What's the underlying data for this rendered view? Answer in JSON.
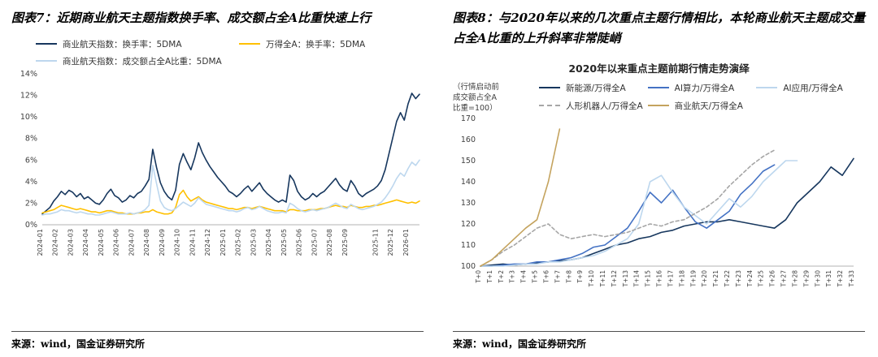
{
  "left": {
    "heading": "图表7：近期商业航天主题指数换手率、成交额占全A比重快速上行",
    "source": "来源：wind，国金证券研究所"
  },
  "right": {
    "heading": "图表8：与2020年以来的几次重点主题行情相比，本轮商业航天主题成交量占全A比重的上升斜率非常陡峭",
    "note": "（行情启动前\n成交额占全A\n比重=100）",
    "source": "来源：wind，国金证券研究所"
  },
  "colors": {
    "navy": "#17375E",
    "gold_yellow": "#FFC000",
    "light_blue": "#BDD7EE",
    "medium_blue": "#4472C4",
    "gray": "#A6A6A6",
    "tan": "#C4A35E"
  },
  "chart_data": [
    {
      "id": "fig7",
      "type": "line",
      "title": "",
      "ylim": [
        0,
        14
      ],
      "yticks": [
        {
          "v": 0,
          "label": "0%"
        },
        {
          "v": 2,
          "label": "2%"
        },
        {
          "v": 4,
          "label": "4%"
        },
        {
          "v": 6,
          "label": "6%"
        },
        {
          "v": 8,
          "label": "8%"
        },
        {
          "v": 10,
          "label": "10%"
        },
        {
          "v": 12,
          "label": "12%"
        },
        {
          "v": 14,
          "label": "14%"
        }
      ],
      "x_labels": [
        "2024-01",
        "2024-02",
        "2024-03",
        "2024-04",
        "2024-05",
        "2024-06",
        "2024-07",
        "2024-08",
        "2024-09",
        "2024-10",
        "2024-11",
        "2024-12",
        "2025-01",
        "2025-02",
        "2025-03",
        "2025-04",
        "2025-05",
        "2025-06",
        "2025-07",
        "2025-08",
        "2025-09",
        "2025-11",
        "2025-12",
        "2026-01"
      ],
      "x_label_point": [
        0,
        4,
        8,
        12,
        16,
        20,
        24,
        28,
        32,
        36,
        40,
        44,
        48,
        52,
        56,
        60,
        64,
        68,
        72,
        76,
        80,
        88,
        92,
        96
      ],
      "grid": false,
      "legend_position": "top",
      "series": [
        {
          "name": "商业航天指数：换手率：5DMA",
          "color": "#17375E",
          "dash": false,
          "values": [
            1.0,
            1.3,
            1.6,
            2.2,
            2.6,
            3.1,
            2.8,
            3.2,
            3.0,
            2.6,
            2.9,
            2.4,
            2.6,
            2.3,
            2.0,
            1.9,
            2.3,
            2.9,
            3.3,
            2.7,
            2.5,
            2.1,
            2.3,
            2.7,
            2.5,
            2.9,
            3.1,
            3.6,
            4.2,
            7.0,
            5.3,
            3.9,
            3.1,
            2.6,
            2.3,
            3.2,
            5.6,
            6.6,
            5.8,
            5.1,
            6.2,
            7.6,
            6.7,
            6.0,
            5.4,
            4.9,
            4.4,
            4.0,
            3.6,
            3.1,
            2.9,
            2.6,
            2.9,
            3.3,
            3.6,
            3.1,
            3.5,
            3.9,
            3.3,
            2.9,
            2.6,
            2.3,
            2.1,
            2.3,
            2.1,
            4.6,
            4.1,
            3.1,
            2.6,
            2.3,
            2.5,
            2.9,
            2.6,
            2.9,
            3.1,
            3.5,
            3.9,
            4.3,
            3.7,
            3.3,
            3.1,
            4.1,
            3.6,
            2.9,
            2.6,
            2.9,
            3.1,
            3.3,
            3.6,
            4.1,
            5.1,
            6.6,
            8.1,
            9.6,
            10.4,
            9.7,
            11.2,
            12.2,
            11.7,
            12.1
          ]
        },
        {
          "name": "万得全A：换手率：5DMA",
          "color": "#FFC000",
          "dash": false,
          "values": [
            1.1,
            1.2,
            1.3,
            1.4,
            1.6,
            1.8,
            1.7,
            1.6,
            1.5,
            1.4,
            1.5,
            1.4,
            1.3,
            1.2,
            1.2,
            1.1,
            1.2,
            1.3,
            1.3,
            1.2,
            1.1,
            1.1,
            1.0,
            1.0,
            1.0,
            1.1,
            1.1,
            1.2,
            1.2,
            1.4,
            1.2,
            1.1,
            1.0,
            1.0,
            1.1,
            1.6,
            2.8,
            3.2,
            2.6,
            2.2,
            2.4,
            2.6,
            2.3,
            2.1,
            2.0,
            1.9,
            1.8,
            1.7,
            1.6,
            1.5,
            1.5,
            1.4,
            1.5,
            1.6,
            1.6,
            1.5,
            1.6,
            1.7,
            1.6,
            1.5,
            1.4,
            1.3,
            1.3,
            1.3,
            1.2,
            1.4,
            1.4,
            1.3,
            1.3,
            1.3,
            1.4,
            1.4,
            1.4,
            1.5,
            1.5,
            1.6,
            1.7,
            1.8,
            1.7,
            1.7,
            1.6,
            1.8,
            1.7,
            1.6,
            1.6,
            1.7,
            1.7,
            1.8,
            1.8,
            1.9,
            2.0,
            2.1,
            2.2,
            2.3,
            2.2,
            2.1,
            2.0,
            2.1,
            2.0,
            2.2
          ]
        },
        {
          "name": "商业航天指数：成交额占全A比重：5DMA",
          "color": "#BDD7EE",
          "dash": false,
          "values": [
            0.9,
            1.0,
            1.0,
            1.1,
            1.2,
            1.4,
            1.3,
            1.3,
            1.2,
            1.1,
            1.2,
            1.1,
            1.0,
            1.0,
            0.9,
            0.9,
            1.0,
            1.1,
            1.2,
            1.1,
            1.0,
            1.0,
            1.0,
            1.1,
            1.0,
            1.1,
            1.2,
            1.4,
            1.8,
            5.5,
            3.8,
            2.2,
            1.6,
            1.4,
            1.3,
            1.5,
            1.8,
            2.1,
            1.9,
            1.7,
            2.0,
            2.5,
            2.2,
            1.9,
            1.8,
            1.7,
            1.6,
            1.5,
            1.4,
            1.3,
            1.3,
            1.2,
            1.3,
            1.5,
            1.6,
            1.4,
            1.5,
            1.7,
            1.5,
            1.3,
            1.2,
            1.1,
            1.1,
            1.2,
            1.1,
            2.0,
            1.8,
            1.5,
            1.3,
            1.2,
            1.3,
            1.4,
            1.3,
            1.4,
            1.5,
            1.6,
            1.8,
            2.0,
            1.8,
            1.6,
            1.5,
            1.9,
            1.7,
            1.5,
            1.4,
            1.5,
            1.6,
            1.7,
            1.9,
            2.1,
            2.5,
            3.0,
            3.6,
            4.3,
            4.8,
            4.5,
            5.2,
            5.8,
            5.5,
            6.0
          ]
        }
      ]
    },
    {
      "id": "fig8",
      "type": "line",
      "title": "2020年以来重点主题前期行情走势演绎",
      "ylim": [
        100,
        170
      ],
      "yticks": [
        {
          "v": 100,
          "label": "100"
        },
        {
          "v": 110,
          "label": "110"
        },
        {
          "v": 120,
          "label": "120"
        },
        {
          "v": 130,
          "label": "130"
        },
        {
          "v": 140,
          "label": "140"
        },
        {
          "v": 150,
          "label": "150"
        },
        {
          "v": 160,
          "label": "160"
        },
        {
          "v": 170,
          "label": "170"
        }
      ],
      "x_labels": [
        "T+0",
        "T+1",
        "T+2",
        "T+3",
        "T+4",
        "T+5",
        "T+6",
        "T+7",
        "T+8",
        "T+9",
        "T+10",
        "T+11",
        "T+12",
        "T+13",
        "T+14",
        "T+15",
        "T+16",
        "T+17",
        "T+18",
        "T+19",
        "T+20",
        "T+21",
        "T+22",
        "T+23",
        "T+24",
        "T+25",
        "T+26",
        "T+27",
        "T+28",
        "T+29",
        "T+30",
        "T+31",
        "T+32",
        "T+33"
      ],
      "grid": false,
      "legend_position": "top",
      "series": [
        {
          "name": "新能源/万得全A",
          "color": "#17375E",
          "dash": false,
          "values": [
            100,
            100.5,
            101,
            100.5,
            101,
            101.5,
            102,
            102.5,
            103,
            104,
            106,
            108,
            110,
            111,
            113,
            114,
            116,
            117,
            119,
            120,
            121,
            121,
            122,
            121,
            120,
            119,
            118,
            122,
            130,
            135,
            140,
            147,
            143,
            151
          ]
        },
        {
          "name": "AI算力/万得全A",
          "color": "#4472C4",
          "dash": false,
          "values": [
            100,
            100,
            100.5,
            101,
            101,
            102,
            102,
            103,
            104,
            106,
            109,
            110,
            114,
            118,
            126,
            135,
            130,
            136,
            128,
            121,
            118,
            122,
            126,
            134,
            139,
            145,
            148
          ]
        },
        {
          "name": "AI应用/万得全A",
          "color": "#BDD7EE",
          "dash": false,
          "values": [
            100,
            100,
            100,
            100.5,
            101,
            101,
            102,
            102,
            103,
            104,
            105,
            107,
            110,
            113,
            120,
            140,
            143,
            135,
            128,
            124,
            120,
            126,
            132,
            128,
            133,
            140,
            145,
            150,
            150
          ]
        },
        {
          "name": "人形机器人/万得全A",
          "color": "#A6A6A6",
          "dash": true,
          "values": [
            100,
            103,
            107,
            110,
            114,
            118,
            120,
            115,
            113,
            114,
            115,
            114,
            115,
            116,
            118,
            120,
            119,
            121,
            122,
            125,
            128,
            132,
            138,
            143,
            148,
            152,
            155
          ]
        },
        {
          "name": "商业航天/万得全A",
          "color": "#C4A35E",
          "dash": false,
          "values": [
            100,
            103,
            108,
            113,
            118,
            122,
            140,
            165
          ]
        }
      ]
    }
  ]
}
